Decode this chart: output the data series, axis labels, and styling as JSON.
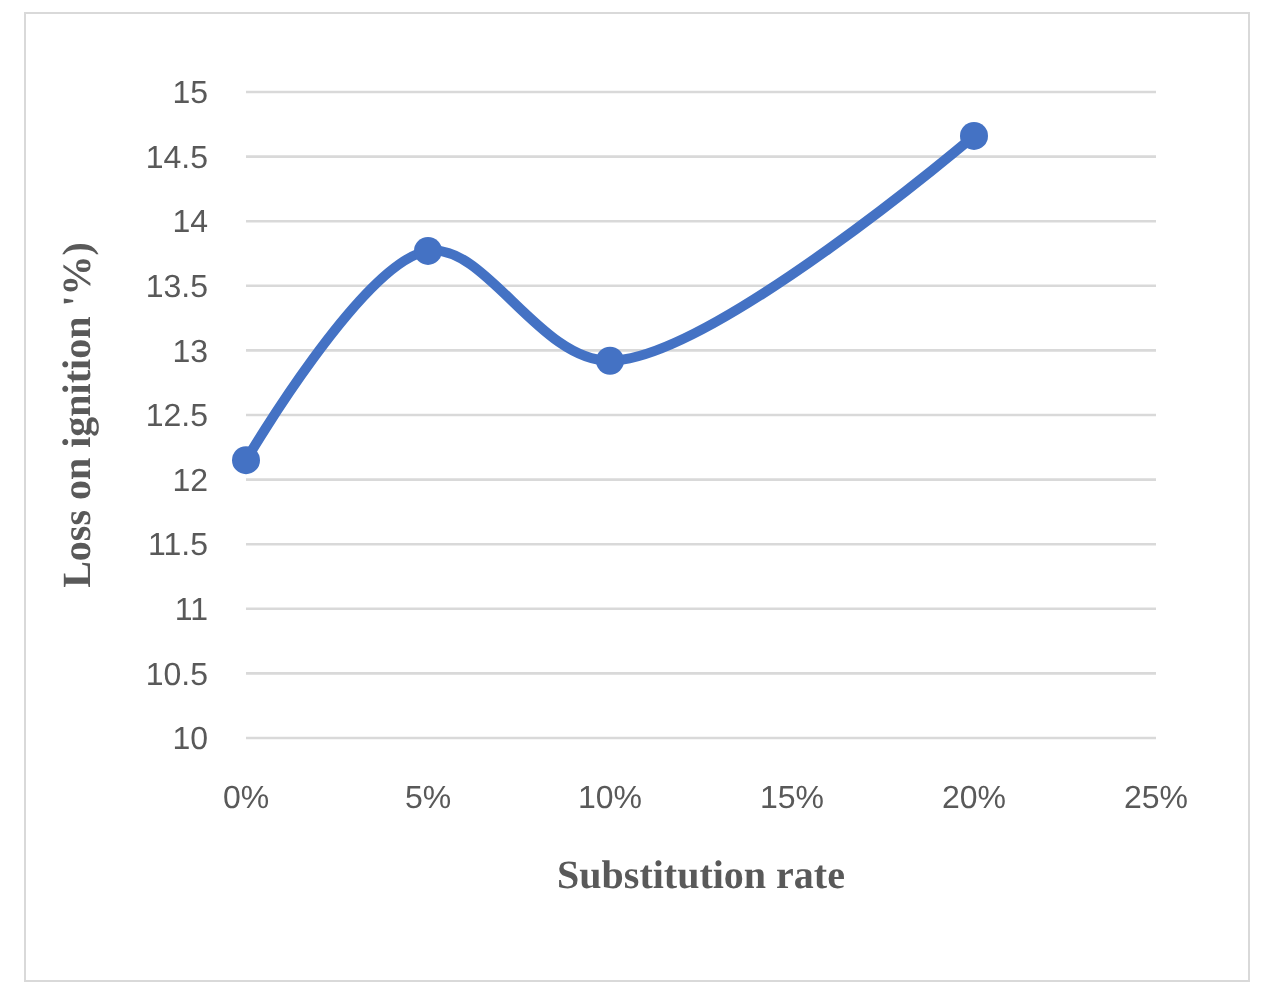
{
  "chart_data": {
    "type": "line",
    "xlabel": "Substitution rate",
    "ylabel": "Loss on ignition '%)",
    "x": [
      0,
      5,
      10,
      20
    ],
    "series": [
      {
        "color": "#4472c4",
        "values": [
          12.15,
          13.77,
          12.92,
          14.66
        ]
      }
    ],
    "xlim": [
      0,
      25
    ],
    "xticks": [
      {
        "value": 0,
        "label": "0%"
      },
      {
        "value": 5,
        "label": "5%"
      },
      {
        "value": 10,
        "label": "10%"
      },
      {
        "value": 15,
        "label": "15%"
      },
      {
        "value": 20,
        "label": "20%"
      },
      {
        "value": 25,
        "label": "25%"
      }
    ],
    "ylim": [
      10,
      15
    ],
    "yticks": [
      10,
      10.5,
      11,
      11.5,
      12,
      12.5,
      13,
      13.5,
      14,
      14.5,
      15
    ],
    "grid": "y",
    "marker": "circle",
    "line_style": "solid"
  }
}
